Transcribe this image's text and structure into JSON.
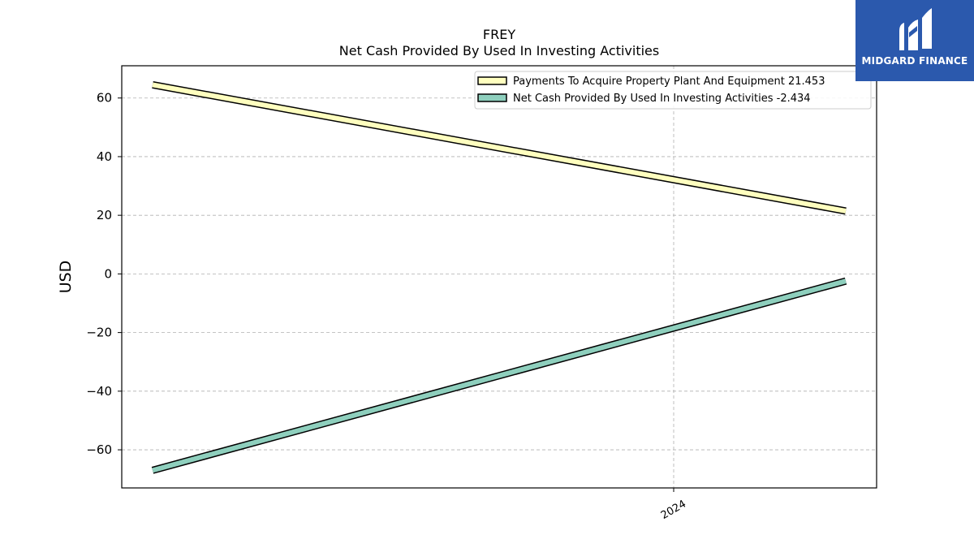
{
  "chart_data": {
    "type": "line",
    "title": "FREY",
    "subtitle": "Net Cash Provided By Used In Investing Activities",
    "xlabel": "",
    "ylabel": "USD",
    "x_tick_labels": [
      "2024"
    ],
    "y_ticks": [
      -60,
      -40,
      -20,
      0,
      20,
      40,
      60
    ],
    "y_tick_labels": [
      "−60",
      "−40",
      "−20",
      "0",
      "20",
      "40",
      "60"
    ],
    "ylim": [
      -73,
      71
    ],
    "grid": true,
    "legend_position": "top-right",
    "series": [
      {
        "name": "Payments To Acquire Property Plant And Equipment",
        "legend_label": "Payments To Acquire Property Plant And Equipment  21.453",
        "color": "#ffffbf",
        "y": [
          64.5,
          21.453
        ]
      },
      {
        "name": "Net Cash Provided By Used In Investing Activities",
        "legend_label": "Net Cash Provided By Used In Investing Activities  -2.434",
        "color": "#8ecfbd",
        "y": [
          -67.0,
          -2.434
        ]
      }
    ]
  },
  "logo": {
    "text": "MIDGARD FINANCE",
    "color": "#2b59ad"
  }
}
